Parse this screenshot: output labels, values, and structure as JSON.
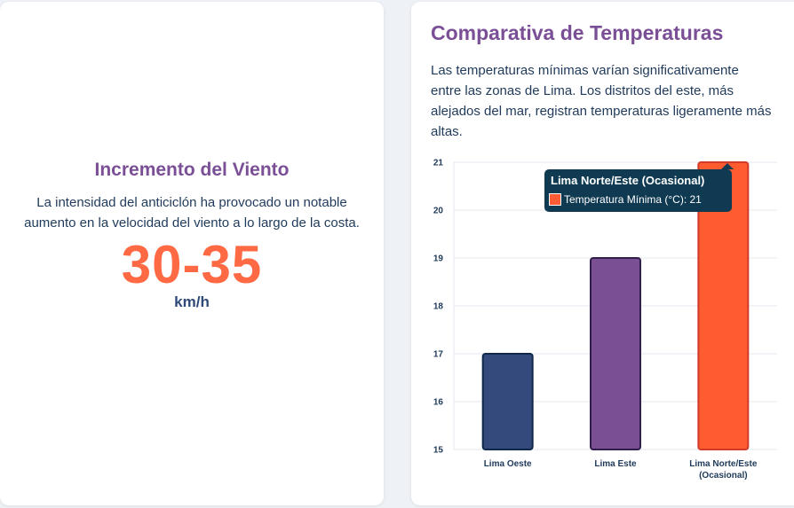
{
  "left_card": {
    "title": "Incremento del Viento",
    "text": "La intensidad del anticiclón ha provocado un notable aumento en la velocidad del viento a lo largo de la costa.",
    "value": "30-35",
    "unit": "km/h"
  },
  "right_card": {
    "title": "Comparativa de Temperaturas",
    "text": "Las temperaturas mínimas varían significativamente entre las zonas de Lima. Los distritos del este, más alejados del mar, registran temperaturas ligeramente más altas."
  },
  "tooltip": {
    "title": "Lima Norte/Este (Ocasional)",
    "series_label": "Temperatura Mínima (°C): 21"
  },
  "colors": {
    "title_purple": "#7a4f96",
    "accent_orange": "#ff6a45",
    "bar_navy": "#354a7c",
    "bar_purple": "#7b4f93",
    "bar_orange": "#ff5c30"
  },
  "chart_data": {
    "type": "bar",
    "categories": [
      [
        "Lima Oeste"
      ],
      [
        "Lima Este"
      ],
      [
        "Lima Norte/Este",
        "(Ocasional)"
      ]
    ],
    "series": [
      {
        "name": "Temperatura Mínima (°C)",
        "values": [
          17,
          19,
          21
        ]
      }
    ],
    "bar_colors": [
      "#354a7c",
      "#7b4f93",
      "#ff5c30"
    ],
    "bar_borders": [
      "#10284a",
      "#2f1f4a",
      "#d23a2a"
    ],
    "ylim": [
      15,
      21
    ],
    "yticks": [
      15,
      16,
      17,
      18,
      19,
      20,
      21
    ],
    "grid": true,
    "legend": "none"
  }
}
